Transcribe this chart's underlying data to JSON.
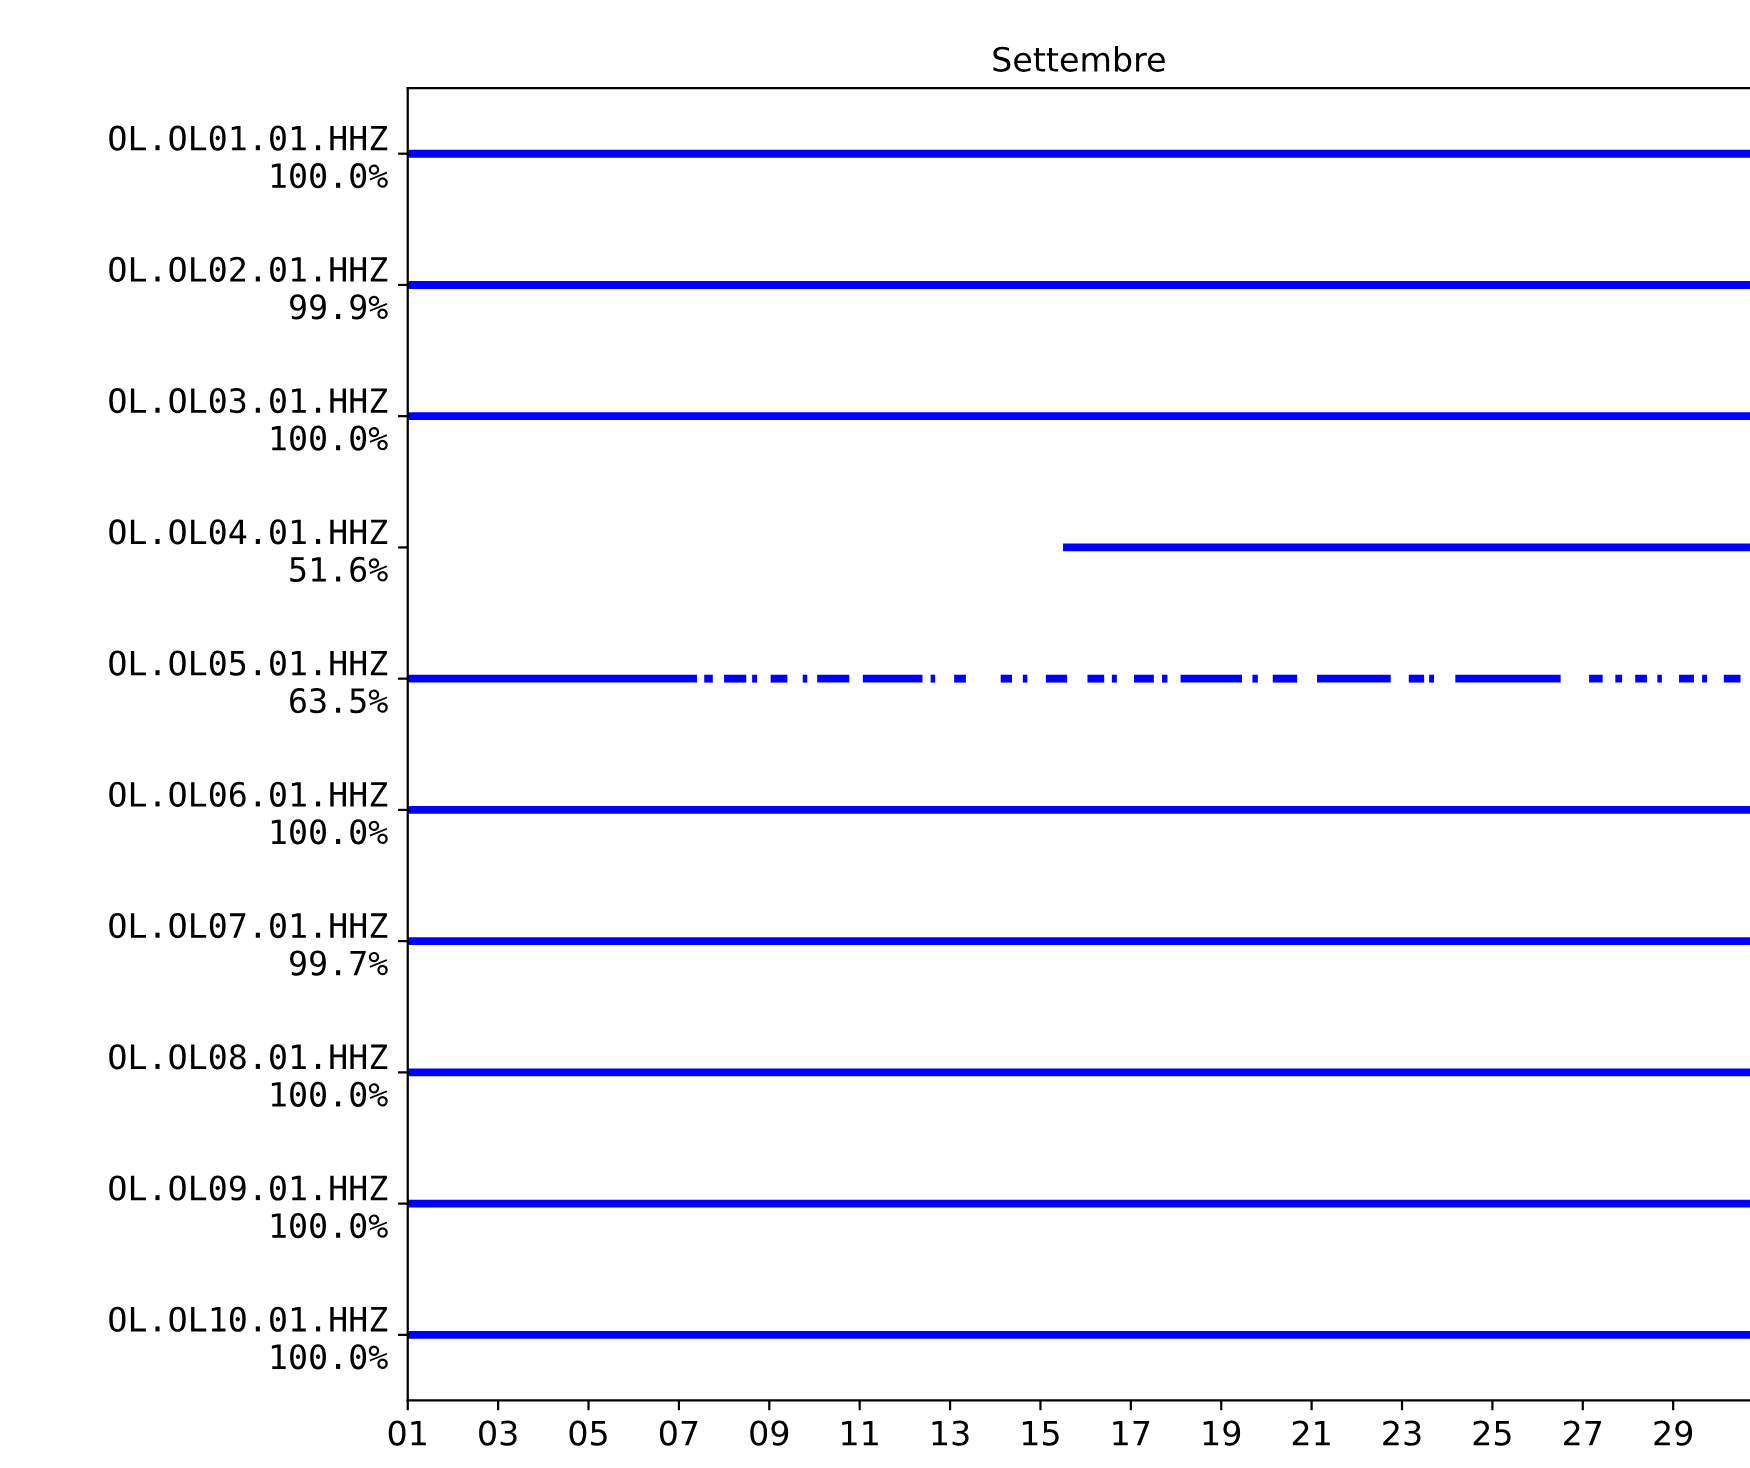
{
  "chart_data": {
    "type": "bar",
    "orientation": "horizontal",
    "title": "Settembre",
    "categories": [
      "OL.OL01.01.HHZ\n100.0%",
      "OL.OL02.01.HHZ\n99.9%",
      "OL.OL03.01.HHZ\n100.0%",
      "OL.OL04.01.HHZ\n51.6%",
      "OL.OL05.01.HHZ\n63.5%",
      "OL.OL06.01.HHZ\n100.0%",
      "OL.OL07.01.HHZ\n99.7%",
      "OL.OL08.01.HHZ\n100.0%",
      "OL.OL09.01.HHZ\n100.0%",
      "OL.OL10.01.HHZ\n100.0%"
    ],
    "xlim": [
      1,
      30.7
    ],
    "xticks": [
      {
        "value": 1,
        "label": "01"
      },
      {
        "value": 3,
        "label": "03"
      },
      {
        "value": 5,
        "label": "05"
      },
      {
        "value": 7,
        "label": "07"
      },
      {
        "value": 9,
        "label": "09"
      },
      {
        "value": 11,
        "label": "11"
      },
      {
        "value": 13,
        "label": "13"
      },
      {
        "value": 15,
        "label": "15"
      },
      {
        "value": 17,
        "label": "17"
      },
      {
        "value": 19,
        "label": "19"
      },
      {
        "value": 21,
        "label": "21"
      },
      {
        "value": 23,
        "label": "23"
      },
      {
        "value": 25,
        "label": "25"
      },
      {
        "value": 27,
        "label": "27"
      },
      {
        "value": 29,
        "label": "29"
      }
    ],
    "series": [
      {
        "color": "#0000ff",
        "base": [
          1,
          1,
          1,
          15.5,
          1,
          1,
          1,
          1,
          1,
          1
        ],
        "values": [
          29.7,
          29.7,
          29.7,
          15.2,
          6.4,
          29.7,
          29.7,
          29.7,
          29.7,
          29.7
        ]
      },
      {
        "color": "#0000ff",
        "base": [
          null,
          null,
          null,
          null,
          7.56,
          null,
          null,
          null,
          null,
          null
        ],
        "values": [
          null,
          null,
          null,
          null,
          0.19,
          null,
          null,
          null,
          null,
          null
        ]
      },
      {
        "color": "#0000ff",
        "base": [
          null,
          null,
          null,
          null,
          8.0,
          null,
          null,
          null,
          null,
          null
        ],
        "values": [
          null,
          null,
          null,
          null,
          0.49,
          null,
          null,
          null,
          null,
          null
        ]
      },
      {
        "color": "#0000ff",
        "base": [
          null,
          null,
          null,
          null,
          8.62,
          null,
          null,
          null,
          null,
          null
        ],
        "values": [
          null,
          null,
          null,
          null,
          0.11,
          null,
          null,
          null,
          null,
          null
        ]
      },
      {
        "color": "#0000ff",
        "base": [
          null,
          null,
          null,
          null,
          9.03,
          null,
          null,
          null,
          null,
          null
        ],
        "values": [
          null,
          null,
          null,
          null,
          0.37,
          null,
          null,
          null,
          null,
          null
        ]
      },
      {
        "color": "#0000ff",
        "base": [
          null,
          null,
          null,
          null,
          9.74,
          null,
          null,
          null,
          null,
          null
        ],
        "values": [
          null,
          null,
          null,
          null,
          0.1,
          null,
          null,
          null,
          null,
          null
        ]
      },
      {
        "color": "#0000ff",
        "base": [
          null,
          null,
          null,
          null,
          10.06,
          null,
          null,
          null,
          null,
          null
        ],
        "values": [
          null,
          null,
          null,
          null,
          0.71,
          null,
          null,
          null,
          null,
          null
        ]
      },
      {
        "color": "#0000ff",
        "base": [
          null,
          null,
          null,
          null,
          11.07,
          null,
          null,
          null,
          null,
          null
        ],
        "values": [
          null,
          null,
          null,
          null,
          1.32,
          null,
          null,
          null,
          null,
          null
        ]
      },
      {
        "color": "#0000ff",
        "base": [
          null,
          null,
          null,
          null,
          12.57,
          null,
          null,
          null,
          null,
          null
        ],
        "values": [
          null,
          null,
          null,
          null,
          0.1,
          null,
          null,
          null,
          null,
          null
        ]
      },
      {
        "color": "#0000ff",
        "base": [
          null,
          null,
          null,
          null,
          13.09,
          null,
          null,
          null,
          null,
          null
        ],
        "values": [
          null,
          null,
          null,
          null,
          0.26,
          null,
          null,
          null,
          null,
          null
        ]
      },
      {
        "color": "#0000ff",
        "base": [
          null,
          null,
          null,
          null,
          14.12,
          null,
          null,
          null,
          null,
          null
        ],
        "values": [
          null,
          null,
          null,
          null,
          0.25,
          null,
          null,
          null,
          null,
          null
        ]
      },
      {
        "color": "#0000ff",
        "base": [
          null,
          null,
          null,
          null,
          14.61,
          null,
          null,
          null,
          null,
          null
        ],
        "values": [
          null,
          null,
          null,
          null,
          0.1,
          null,
          null,
          null,
          null,
          null
        ]
      },
      {
        "color": "#0000ff",
        "base": [
          null,
          null,
          null,
          null,
          15.12,
          null,
          null,
          null,
          null,
          null
        ],
        "values": [
          null,
          null,
          null,
          null,
          0.47,
          null,
          null,
          null,
          null,
          null
        ]
      },
      {
        "color": "#0000ff",
        "base": [
          null,
          null,
          null,
          null,
          16.04,
          null,
          null,
          null,
          null,
          null
        ],
        "values": [
          null,
          null,
          null,
          null,
          0.37,
          null,
          null,
          null,
          null,
          null
        ]
      },
      {
        "color": "#0000ff",
        "base": [
          null,
          null,
          null,
          null,
          16.58,
          null,
          null,
          null,
          null,
          null
        ],
        "values": [
          null,
          null,
          null,
          null,
          0.11,
          null,
          null,
          null,
          null,
          null
        ]
      },
      {
        "color": "#0000ff",
        "base": [
          null,
          null,
          null,
          null,
          17.07,
          null,
          null,
          null,
          null,
          null
        ],
        "values": [
          null,
          null,
          null,
          null,
          0.44,
          null,
          null,
          null,
          null,
          null
        ]
      },
      {
        "color": "#0000ff",
        "base": [
          null,
          null,
          null,
          null,
          17.69,
          null,
          null,
          null,
          null,
          null
        ],
        "values": [
          null,
          null,
          null,
          null,
          0.12,
          null,
          null,
          null,
          null,
          null
        ]
      },
      {
        "color": "#0000ff",
        "base": [
          null,
          null,
          null,
          null,
          18.1,
          null,
          null,
          null,
          null,
          null
        ],
        "values": [
          null,
          null,
          null,
          null,
          1.36,
          null,
          null,
          null,
          null,
          null
        ]
      },
      {
        "color": "#0000ff",
        "base": [
          null,
          null,
          null,
          null,
          19.69,
          null,
          null,
          null,
          null,
          null
        ],
        "values": [
          null,
          null,
          null,
          null,
          0.12,
          null,
          null,
          null,
          null,
          null
        ]
      },
      {
        "color": "#0000ff",
        "base": [
          null,
          null,
          null,
          null,
          20.14,
          null,
          null,
          null,
          null,
          null
        ],
        "values": [
          null,
          null,
          null,
          null,
          0.54,
          null,
          null,
          null,
          null,
          null
        ]
      },
      {
        "color": "#0000ff",
        "base": [
          null,
          null,
          null,
          null,
          21.12,
          null,
          null,
          null,
          null,
          null
        ],
        "values": [
          null,
          null,
          null,
          null,
          1.63,
          null,
          null,
          null,
          null,
          null
        ]
      },
      {
        "color": "#0000ff",
        "base": [
          null,
          null,
          null,
          null,
          23.15,
          null,
          null,
          null,
          null,
          null
        ],
        "values": [
          null,
          null,
          null,
          null,
          0.34,
          null,
          null,
          null,
          null,
          null
        ]
      },
      {
        "color": "#0000ff",
        "base": [
          null,
          null,
          null,
          null,
          23.6,
          null,
          null,
          null,
          null,
          null
        ],
        "values": [
          null,
          null,
          null,
          null,
          0.11,
          null,
          null,
          null,
          null,
          null
        ]
      },
      {
        "color": "#0000ff",
        "base": [
          null,
          null,
          null,
          null,
          24.18,
          null,
          null,
          null,
          null,
          null
        ],
        "values": [
          null,
          null,
          null,
          null,
          2.33,
          null,
          null,
          null,
          null,
          null
        ]
      },
      {
        "color": "#0000ff",
        "base": [
          null,
          null,
          null,
          null,
          27.14,
          null,
          null,
          null,
          null,
          null
        ],
        "values": [
          null,
          null,
          null,
          null,
          0.3,
          null,
          null,
          null,
          null,
          null
        ]
      },
      {
        "color": "#0000ff",
        "base": [
          null,
          null,
          null,
          null,
          27.72,
          null,
          null,
          null,
          null,
          null
        ],
        "values": [
          null,
          null,
          null,
          null,
          0.15,
          null,
          null,
          null,
          null,
          null
        ]
      },
      {
        "color": "#0000ff",
        "base": [
          null,
          null,
          null,
          null,
          28.16,
          null,
          null,
          null,
          null,
          null
        ],
        "values": [
          null,
          null,
          null,
          null,
          0.26,
          null,
          null,
          null,
          null,
          null
        ]
      },
      {
        "color": "#0000ff",
        "base": [
          null,
          null,
          null,
          null,
          28.65,
          null,
          null,
          null,
          null,
          null
        ],
        "values": [
          null,
          null,
          null,
          null,
          0.1,
          null,
          null,
          null,
          null,
          null
        ]
      },
      {
        "color": "#0000ff",
        "base": [
          null,
          null,
          null,
          null,
          29.13,
          null,
          null,
          null,
          null,
          null
        ],
        "values": [
          null,
          null,
          null,
          null,
          0.33,
          null,
          null,
          null,
          null,
          null
        ]
      },
      {
        "color": "#0000ff",
        "base": [
          null,
          null,
          null,
          null,
          29.64,
          null,
          null,
          null,
          null,
          null
        ],
        "values": [
          null,
          null,
          null,
          null,
          0.11,
          null,
          null,
          null,
          null,
          null
        ]
      },
      {
        "color": "#0000ff",
        "base": [
          null,
          null,
          null,
          null,
          30.12,
          null,
          null,
          null,
          null,
          null
        ],
        "values": [
          null,
          null,
          null,
          null,
          0.37,
          null,
          null,
          null,
          null,
          null
        ]
      }
    ]
  }
}
